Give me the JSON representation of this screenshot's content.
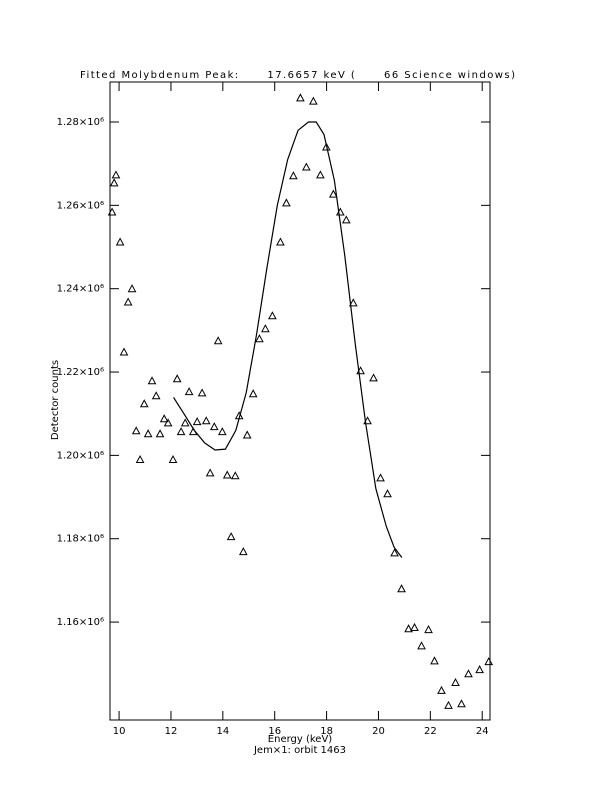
{
  "chart_data": {
    "type": "scatter",
    "title": "Fitted Molybdenum Peak:      17.6657 keV (      66 Science windows)",
    "x_label": "Energy (keV)",
    "subtitle": "Jem×1: orbit 1463",
    "y_label": "Detector counts",
    "xlim": [
      9.65,
      24.3
    ],
    "ylim": [
      1136500,
      1289600
    ],
    "xticks": [
      10,
      12,
      14,
      16,
      18,
      20,
      22,
      24
    ],
    "yticks": [
      {
        "value": 1160000,
        "label": "1.16×10⁶"
      },
      {
        "value": 1180000,
        "label": "1.18×10⁶"
      },
      {
        "value": 1200000,
        "label": "1.20×10⁶"
      },
      {
        "value": 1220000,
        "label": "1.22×10⁶"
      },
      {
        "value": 1240000,
        "label": "1.24×10⁶"
      },
      {
        "value": 1260000,
        "label": "1.26×10⁶"
      },
      {
        "value": 1280000,
        "label": "1.28×10⁶"
      }
    ],
    "grid": false,
    "series": [
      {
        "marker": "triangle",
        "color": "#000000",
        "x": [
          9.73,
          9.81,
          9.88,
          10.04,
          10.19,
          10.35,
          10.5,
          10.66,
          10.81,
          10.97,
          11.12,
          11.27,
          11.43,
          11.58,
          11.74,
          11.89,
          12.08,
          12.24,
          12.39,
          12.55,
          12.7,
          12.86,
          13.01,
          13.2,
          13.36,
          13.51,
          13.67,
          13.82,
          13.98,
          14.17,
          14.32,
          14.48,
          14.63,
          14.79,
          14.94,
          15.17,
          15.41,
          15.64,
          15.91,
          16.22,
          16.45,
          16.72,
          16.99,
          17.22,
          17.49,
          17.76,
          17.99,
          18.26,
          18.53,
          18.76,
          19.03,
          19.31,
          19.58,
          19.81,
          20.08,
          20.35,
          20.62,
          20.89,
          21.16,
          21.39,
          21.66,
          21.93,
          22.16,
          22.43,
          22.7,
          22.97,
          23.2,
          23.47,
          23.9,
          24.25
        ],
        "values": [
          1258400,
          1265400,
          1267300,
          1251200,
          1224800,
          1236800,
          1240000,
          1205900,
          1199000,
          1212400,
          1205200,
          1217900,
          1214300,
          1205200,
          1208800,
          1207800,
          1199000,
          1218400,
          1205700,
          1207800,
          1215300,
          1205700,
          1208100,
          1215000,
          1208300,
          1195800,
          1206900,
          1227500,
          1205700,
          1195300,
          1180500,
          1195100,
          1209500,
          1176900,
          1204900,
          1214800,
          1228000,
          1230400,
          1233500,
          1251200,
          1260600,
          1267100,
          1285800,
          1269200,
          1285000,
          1267300,
          1274000,
          1262700,
          1258400,
          1256500,
          1236600,
          1220300,
          1208300,
          1218600,
          1194600,
          1190800,
          1176600,
          1168000,
          1158400,
          1158700,
          1154300,
          1158200,
          1150700,
          1143600,
          1140000,
          1145500,
          1140400,
          1147600,
          1148600,
          1150500
        ]
      },
      {
        "marker": "line",
        "color": "#000000",
        "x": [
          12.1,
          12.5,
          12.9,
          13.3,
          13.7,
          14.1,
          14.5,
          14.9,
          15.3,
          15.7,
          16.1,
          16.5,
          16.9,
          17.3,
          17.6,
          17.9,
          18.3,
          18.7,
          19.1,
          19.5,
          19.9,
          20.3,
          20.6,
          20.9
        ],
        "values": [
          1213900,
          1210000,
          1206000,
          1203000,
          1201300,
          1201500,
          1206000,
          1215000,
          1229000,
          1245000,
          1260000,
          1271000,
          1278000,
          1280000,
          1280000,
          1277000,
          1266000,
          1248000,
          1227000,
          1208000,
          1192000,
          1183000,
          1178000,
          1175500
        ]
      }
    ]
  }
}
